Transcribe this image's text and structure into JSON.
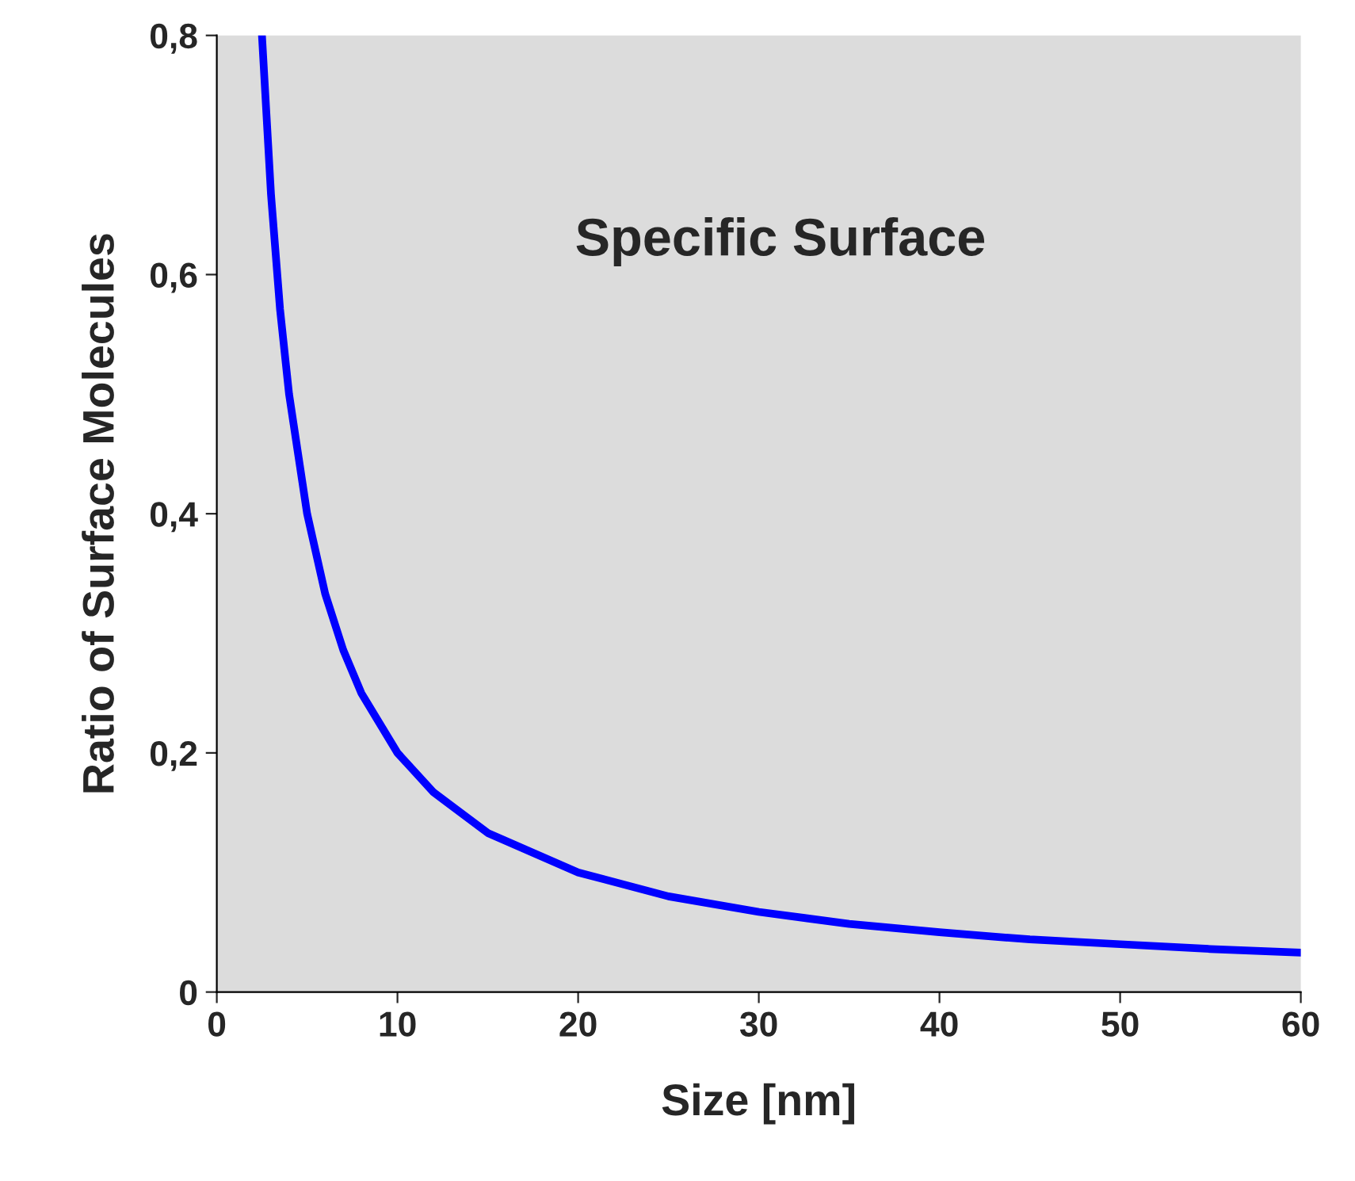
{
  "chart_data": {
    "type": "line",
    "title": "Specific Surface",
    "xlabel": "Size [nm]",
    "ylabel": "Ratio of Surface Molecules",
    "x": [
      2.5,
      3,
      3.5,
      4,
      5,
      6,
      7,
      8,
      10,
      12,
      15,
      20,
      25,
      30,
      35,
      40,
      45,
      50,
      55,
      60
    ],
    "series": [
      {
        "color": "#0000ff",
        "values": [
          0.8,
          0.667,
          0.571,
          0.5,
          0.4,
          0.333,
          0.286,
          0.25,
          0.2,
          0.167,
          0.133,
          0.1,
          0.08,
          0.067,
          0.057,
          0.05,
          0.044,
          0.04,
          0.036,
          0.033
        ]
      }
    ],
    "xlim": [
      0,
      60
    ],
    "ylim": [
      0,
      0.8
    ],
    "xticks": [
      0,
      10,
      20,
      30,
      40,
      50,
      60
    ],
    "yticks": [
      0,
      {
        "value": 0.2,
        "label": "0,2"
      },
      {
        "value": 0.4,
        "label": "0,4"
      },
      {
        "value": 0.6,
        "label": "0,6"
      },
      {
        "value": 0.8,
        "label": "0,8"
      }
    ],
    "grid": false,
    "marker": "none",
    "line_style": "solid"
  }
}
